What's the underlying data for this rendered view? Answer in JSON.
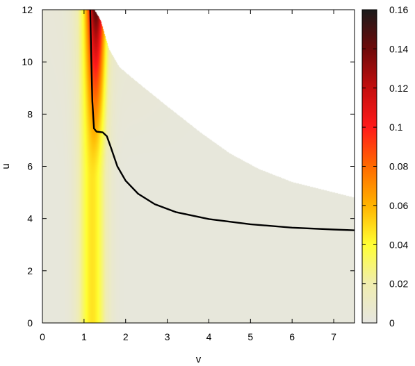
{
  "chart_data": {
    "type": "heatmap",
    "xlabel": "v",
    "ylabel": "u",
    "xlim": [
      0,
      7.5
    ],
    "ylim": [
      0,
      12
    ],
    "x_ticks": [
      "0",
      "1",
      "2",
      "3",
      "4",
      "5",
      "6",
      "7"
    ],
    "y_ticks": [
      "0",
      "2",
      "4",
      "6",
      "8",
      "10",
      "12"
    ],
    "colorbar": {
      "range": [
        0,
        0.16
      ],
      "ticks": [
        "0",
        "0.02",
        "0.04",
        "0.06",
        "0.08",
        "0.1",
        "0.12",
        "0.14",
        "0.16"
      ],
      "colors": [
        {
          "value": 0.0,
          "color": "#e6e6e0"
        },
        {
          "value": 0.02,
          "color": "#f0edb0"
        },
        {
          "value": 0.04,
          "color": "#ffff33"
        },
        {
          "value": 0.06,
          "color": "#ffb300"
        },
        {
          "value": 0.08,
          "color": "#ff6a00"
        },
        {
          "value": 0.1,
          "color": "#ff1a1a"
        },
        {
          "value": 0.12,
          "color": "#c40e0e"
        },
        {
          "value": 0.14,
          "color": "#6e0a0a"
        },
        {
          "value": 0.16,
          "color": "#1a1a1a"
        }
      ]
    },
    "domain_boundary": {
      "note_free": true,
      "points": [
        [
          1.25,
          12
        ],
        [
          1.4,
          11.6
        ],
        [
          1.6,
          10.5
        ],
        [
          1.85,
          9.8
        ],
        [
          2.3,
          9.2
        ],
        [
          3.0,
          8.3
        ],
        [
          3.8,
          7.3
        ],
        [
          4.5,
          6.5
        ],
        [
          5.2,
          5.9
        ],
        [
          6.0,
          5.4
        ],
        [
          7.0,
          5.0
        ],
        [
          7.5,
          4.8
        ]
      ]
    },
    "curve": {
      "points": [
        [
          1.15,
          12
        ],
        [
          1.17,
          10.5
        ],
        [
          1.2,
          8.5
        ],
        [
          1.24,
          7.45
        ],
        [
          1.3,
          7.33
        ],
        [
          1.45,
          7.3
        ],
        [
          1.55,
          7.15
        ],
        [
          1.65,
          6.7
        ],
        [
          1.8,
          6.0
        ],
        [
          2.0,
          5.45
        ],
        [
          2.3,
          4.95
        ],
        [
          2.7,
          4.55
        ],
        [
          3.2,
          4.25
        ],
        [
          4.0,
          3.98
        ],
        [
          5.0,
          3.78
        ],
        [
          6.0,
          3.65
        ],
        [
          7.0,
          3.58
        ],
        [
          7.5,
          3.55
        ]
      ]
    }
  }
}
